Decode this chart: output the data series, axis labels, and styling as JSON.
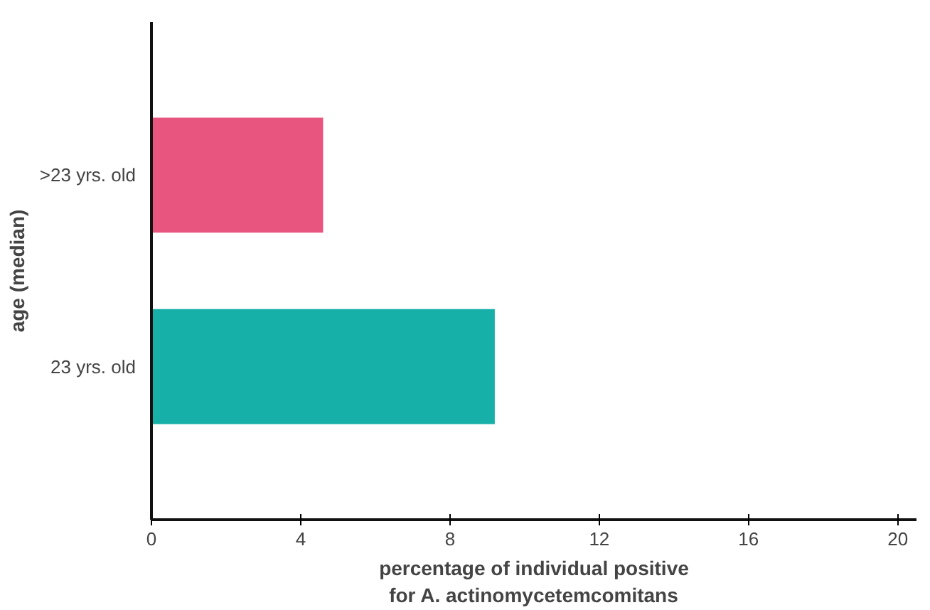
{
  "chart_data": {
    "type": "bar",
    "orientation": "horizontal",
    "categories": [
      ">23 yrs. old",
      "23 yrs. old"
    ],
    "values": [
      4.6,
      9.2
    ],
    "colors": [
      "#e8557e",
      "#17b0a8"
    ],
    "xlabel": "percentage of individual positive\nfor A. actinomycetemcomitans",
    "ylabel": "age (median)",
    "xlim": [
      0,
      20.5
    ],
    "xticks": [
      0,
      4,
      8,
      12,
      16,
      20
    ],
    "grid": false
  }
}
